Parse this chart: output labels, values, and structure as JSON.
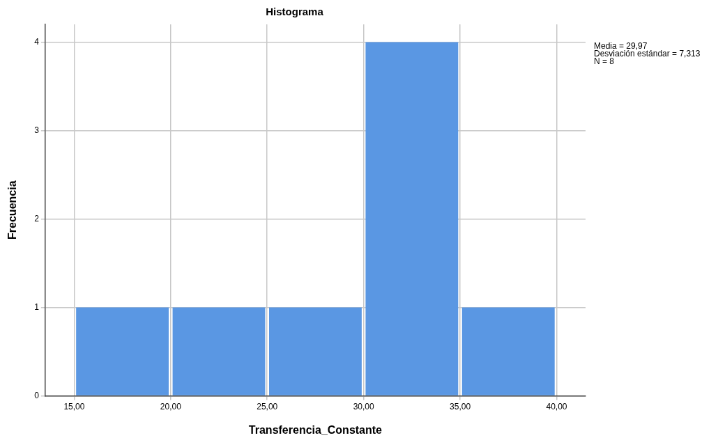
{
  "chart_data": {
    "type": "histogram",
    "title": "Histograma",
    "xlabel": "Transferencia_Constante",
    "ylabel": "Frecuencia",
    "bins": [
      15,
      20,
      25,
      30,
      35,
      40
    ],
    "values": [
      1,
      1,
      1,
      4,
      1
    ],
    "color": "#5a97e3",
    "xlim": [
      13.5,
      41.5
    ],
    "ylim": [
      0,
      4.2
    ],
    "xticks": [
      {
        "value": 15,
        "label": "15,00"
      },
      {
        "value": 20,
        "label": "20,00"
      },
      {
        "value": 25,
        "label": "25,00"
      },
      {
        "value": 30,
        "label": "30,00"
      },
      {
        "value": 35,
        "label": "35,00"
      },
      {
        "value": 40,
        "label": "40,00"
      }
    ],
    "yticks": [
      0,
      1,
      2,
      3,
      4
    ],
    "grid": true,
    "annotations": [
      "Media = 29,97",
      "Desviación estándar = 7,313",
      "N = 8"
    ]
  }
}
